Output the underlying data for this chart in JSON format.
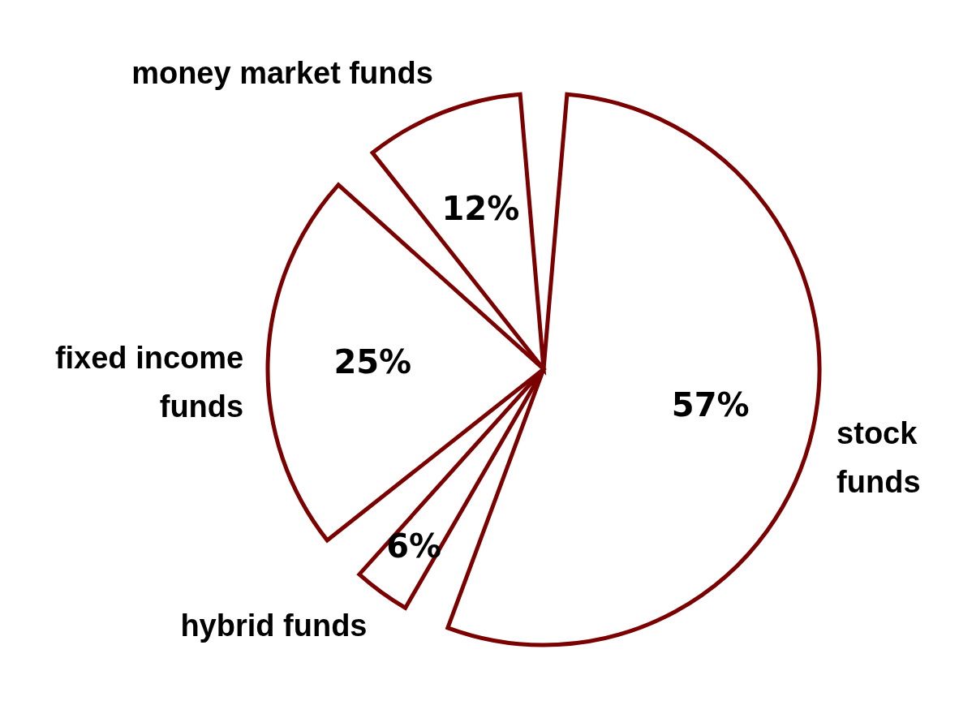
{
  "chart_data": {
    "type": "pie",
    "categories": [
      "stock funds",
      "hybrid funds",
      "fixed income funds",
      "money market funds"
    ],
    "values": [
      57,
      6,
      25,
      12
    ],
    "colors": [
      "#7b0000",
      "#7b0000",
      "#7b0000",
      "#7b0000"
    ],
    "value_labels": [
      "57%",
      "6%",
      "25%",
      "12%"
    ]
  }
}
